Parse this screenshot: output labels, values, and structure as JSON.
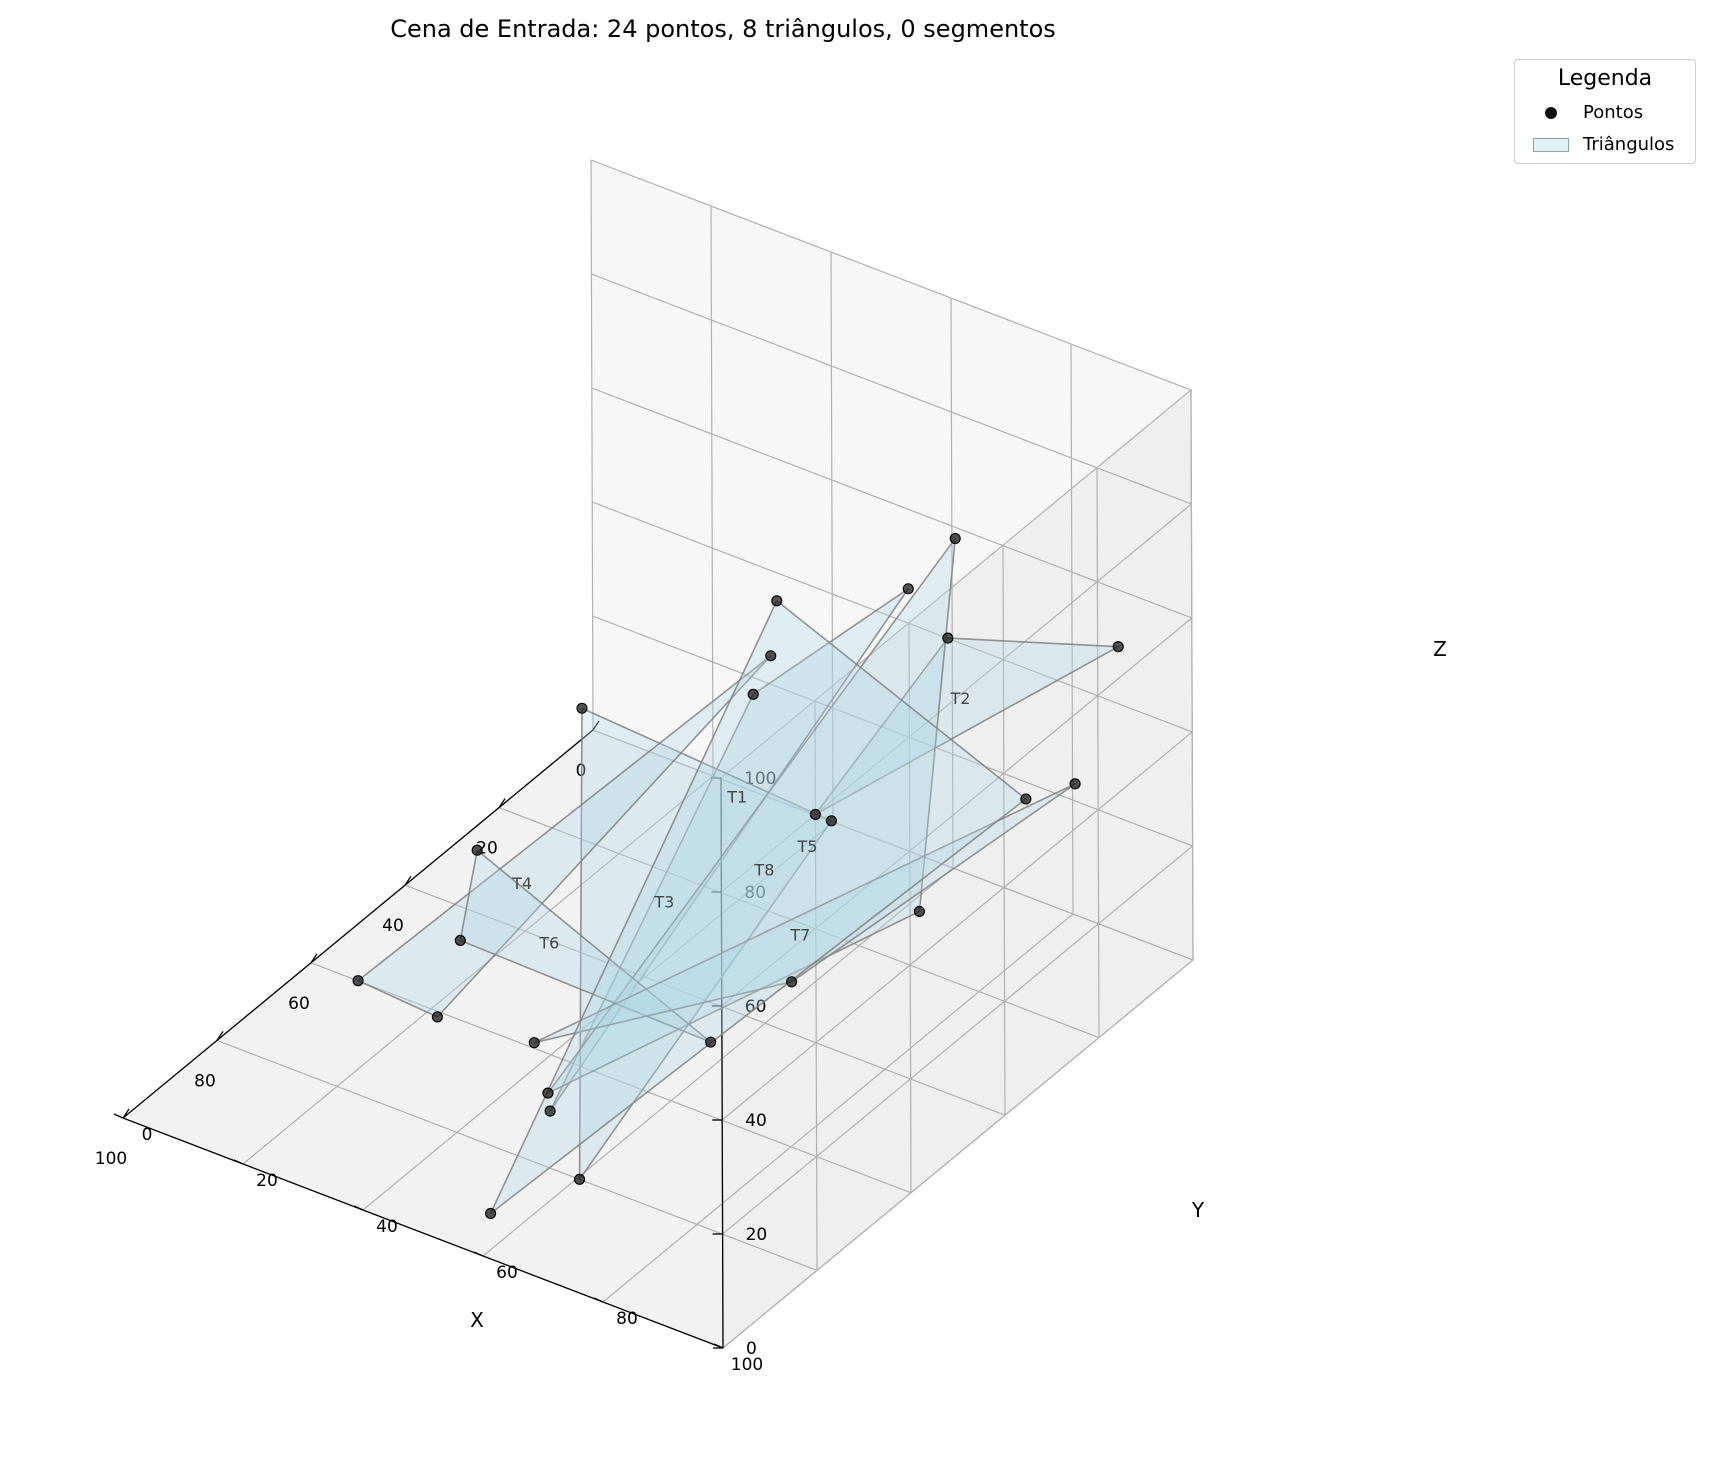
{
  "chart_data": {
    "type": "scatter3d",
    "title": "Cena de Entrada: 24 pontos, 8 triângulos, 0 segmentos",
    "xlabel": "X",
    "ylabel": "Y",
    "zlabel": "Z",
    "xlim": [
      0,
      100
    ],
    "ylim": [
      0,
      100
    ],
    "zlim": [
      0,
      100
    ],
    "xticks": [
      "0",
      "20",
      "40",
      "60",
      "80",
      "100"
    ],
    "yticks": [
      "0",
      "20",
      "40",
      "60",
      "80",
      "100"
    ],
    "zticks": [
      "0",
      "20",
      "40",
      "60",
      "80",
      "100"
    ],
    "grid": true,
    "legend_position": "upper-right, outside",
    "colors": {
      "points": "#1a1a1a",
      "triangle_fill": "#add8e6",
      "triangle_edge": "#808080"
    },
    "triangles": [
      {
        "label": "T1",
        "vertices": [
          [
            22,
            70,
            68
          ],
          [
            92,
            65,
            22
          ],
          [
            27,
            48,
            44
          ]
        ]
      },
      {
        "label": "T2",
        "vertices": [
          [
            8,
            94,
            58
          ],
          [
            20,
            75,
            60
          ],
          [
            80,
            100,
            80
          ]
        ]
      },
      {
        "label": "T3",
        "vertices": [
          [
            43,
            32,
            46
          ],
          [
            82,
            62,
            2
          ],
          [
            55,
            83,
            55
          ]
        ]
      },
      {
        "label": "T4",
        "vertices": [
          [
            8,
            36,
            33
          ],
          [
            78,
            22,
            18
          ],
          [
            65,
            25,
            4
          ]
        ]
      },
      {
        "label": "T5",
        "vertices": [
          [
            12,
            70,
            70
          ],
          [
            58,
            100,
            48
          ],
          [
            95,
            67,
            28
          ]
        ]
      },
      {
        "label": "T6",
        "vertices": [
          [
            45,
            16,
            16
          ],
          [
            49,
            58,
            2
          ],
          [
            55,
            21,
            9
          ]
        ]
      },
      {
        "label": "T7",
        "vertices": [
          [
            2,
            82,
            25
          ],
          [
            61,
            38,
            2
          ],
          [
            75,
            92,
            44
          ]
        ]
      },
      {
        "label": "T8",
        "vertices": [
          [
            15,
            84,
            32
          ],
          [
            41,
            63,
            76
          ],
          [
            92,
            55,
            0
          ]
        ]
      }
    ]
  },
  "legend": {
    "title": "Legenda",
    "items": [
      "Pontos",
      "Triângulos"
    ]
  }
}
